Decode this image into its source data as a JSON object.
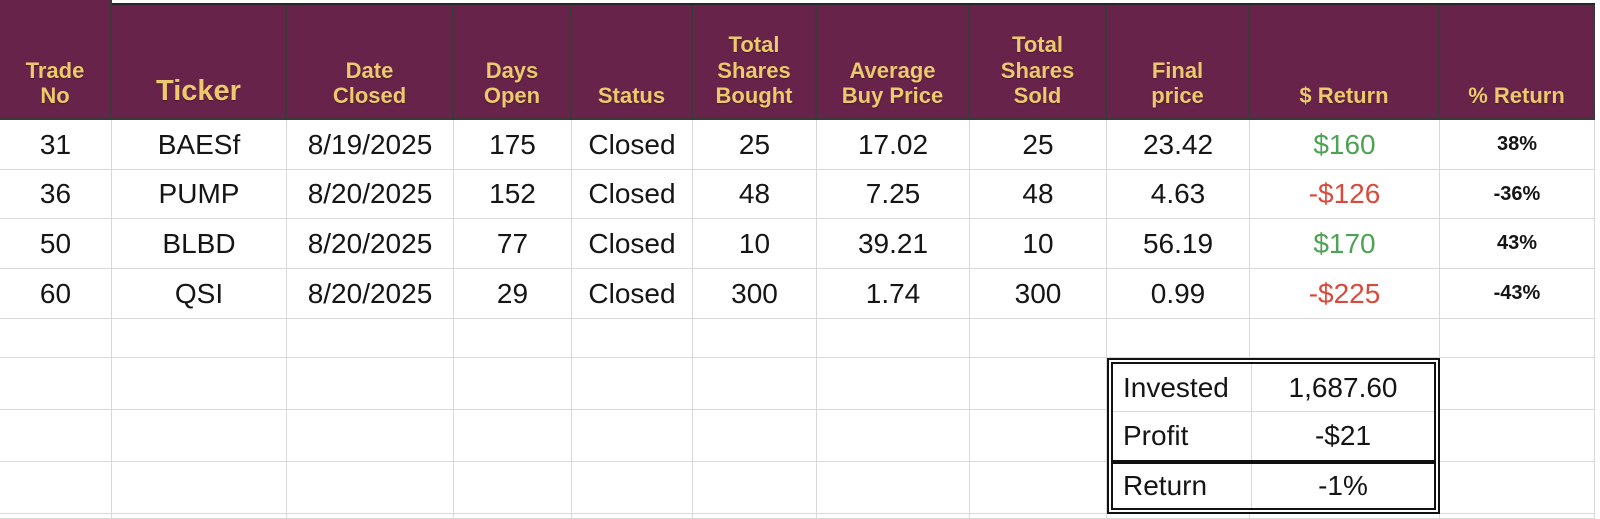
{
  "app": {
    "type": "spreadsheet-trade-log"
  },
  "colors": {
    "header_bg": "#67234a",
    "header_text": "#edc96d",
    "positive_return": "#4ea253",
    "negative_return": "#da4a3c",
    "gridline": "#d9d9d9",
    "header_separator": "#3a3a3a"
  },
  "headers": [
    "Trade\nNo",
    "Ticker",
    "Date\nClosed",
    "Days\nOpen",
    "Status",
    "Total\nShares\nBought",
    "Average\nBuy Price",
    "Total\nShares\nSold",
    "Final\nprice",
    "$ Return",
    "% Return"
  ],
  "rows": [
    [
      "31",
      "BAESf",
      "8/19/2025",
      "175",
      "Closed",
      "25",
      "17.02",
      "25",
      "23.42",
      "$160",
      "38%"
    ],
    [
      "36",
      "PUMP",
      "8/20/2025",
      "152",
      "Closed",
      "48",
      "7.25",
      "48",
      "4.63",
      "-$126",
      "-36%"
    ],
    [
      "50",
      "BLBD",
      "8/20/2025",
      "77",
      "Closed",
      "10",
      "39.21",
      "10",
      "56.19",
      "$170",
      "43%"
    ],
    [
      "60",
      "QSI",
      "8/20/2025",
      "29",
      "Closed",
      "300",
      "1.74",
      "300",
      "0.99",
      "-$225",
      "-43%"
    ]
  ],
  "summary": {
    "invested_label": "Invested",
    "invested_value": "1,687.60",
    "profit_label": "Profit",
    "profit_value": "-$21",
    "return_label": "Return",
    "return_value": "-1%"
  }
}
